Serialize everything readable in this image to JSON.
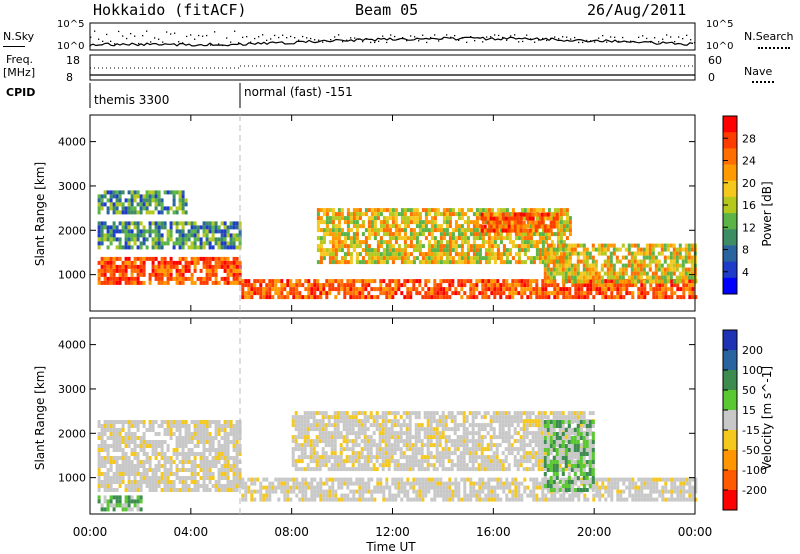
{
  "header": {
    "station": "Hokkaido (fitACF)",
    "beam": "Beam 05",
    "date": "26/Aug/2011"
  },
  "panels": {
    "nsky_label": "N.Sky",
    "nsearch_label": "N.Search",
    "nsky_ticks": [
      "10^5",
      "10^0"
    ],
    "nsearch_ticks": [
      "10^5",
      "10^0"
    ],
    "freq_label": "Freq.",
    "freq_unit": "[MHz]",
    "freq_ticks": [
      "18",
      "8"
    ],
    "nave_label": "Nave",
    "nave_ticks": [
      "60",
      "0"
    ],
    "cpid_label": "CPID",
    "cpid_modes": [
      "themis 3300",
      "normal (fast) -151"
    ]
  },
  "chart_data": [
    {
      "type": "heatmap",
      "name": "power-panel",
      "ylabel": "Slant Range [km]",
      "yticks": [
        "1000",
        "2000",
        "3000",
        "4000"
      ],
      "ylim": [
        180,
        4600
      ],
      "xlim": [
        0,
        24
      ],
      "colorbar_label": "Power [dB]",
      "colorbar_ticks": [
        "28",
        "24",
        "20",
        "16",
        "12",
        "8",
        "4"
      ],
      "colorbar_colors": [
        "#ff0000",
        "#ff3c00",
        "#ff6e00",
        "#ff9b00",
        "#f5c81e",
        "#b4c81e",
        "#5ab446",
        "#3c8c64",
        "#2864a0",
        "#1e3cc8",
        "#0000ff"
      ],
      "echo_bands": [
        {
          "t0": 0.3,
          "t1": 6.0,
          "r0": 800,
          "r1": 1400,
          "level": "high"
        },
        {
          "t0": 0.3,
          "t1": 6.0,
          "r0": 1600,
          "r1": 2200,
          "level": "low"
        },
        {
          "t0": 0.3,
          "t1": 3.8,
          "r0": 2400,
          "r1": 2900,
          "level": "low"
        },
        {
          "t0": 6.0,
          "t1": 24.0,
          "r0": 500,
          "r1": 900,
          "level": "high"
        },
        {
          "t0": 9.0,
          "t1": 19.0,
          "r0": 1300,
          "r1": 2500,
          "level": "mid"
        },
        {
          "t0": 15.5,
          "t1": 18.5,
          "r0": 2000,
          "r1": 2400,
          "level": "high"
        },
        {
          "t0": 18.0,
          "t1": 24.0,
          "r0": 800,
          "r1": 1700,
          "level": "mid"
        }
      ]
    },
    {
      "type": "heatmap",
      "name": "velocity-panel",
      "ylabel": "Slant Range [km]",
      "xlabel": "Time UT",
      "xticks": [
        "00:00",
        "04:00",
        "08:00",
        "12:00",
        "16:00",
        "20:00",
        "00:00"
      ],
      "yticks": [
        "1000",
        "2000",
        "3000",
        "4000"
      ],
      "ylim": [
        180,
        4600
      ],
      "xlim": [
        0,
        24
      ],
      "colorbar_label": "Velocity [m s^-1]",
      "colorbar_ticks": [
        "200",
        "100",
        "50",
        "15",
        "-15",
        "-50",
        "-100",
        "-200"
      ],
      "colorbar_colors": [
        "#1e32b4",
        "#2864a0",
        "#3c8c50",
        "#5ac832",
        "#c8c8c8",
        "#f5c81e",
        "#ff9600",
        "#ff5a00",
        "#ff0000"
      ],
      "echo_bands": [
        {
          "t0": 0.3,
          "t1": 6.0,
          "r0": 700,
          "r1": 2300,
          "level": "ground"
        },
        {
          "t0": 0.3,
          "t1": 2.0,
          "r0": 250,
          "r1": 600,
          "level": "positive"
        },
        {
          "t0": 6.0,
          "t1": 24.0,
          "r0": 500,
          "r1": 1000,
          "level": "ground"
        },
        {
          "t0": 8.0,
          "t1": 20.0,
          "r0": 1200,
          "r1": 2500,
          "level": "ground"
        },
        {
          "t0": 18.0,
          "t1": 20.0,
          "r0": 700,
          "r1": 2300,
          "level": "positive"
        }
      ]
    }
  ]
}
